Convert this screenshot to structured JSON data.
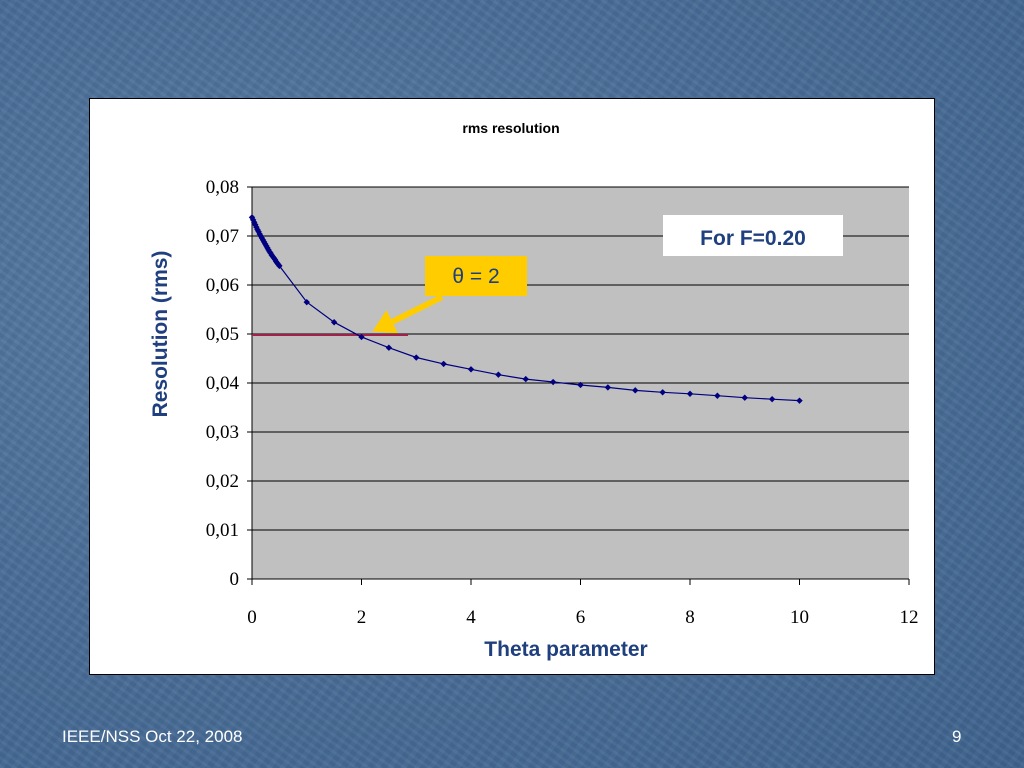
{
  "slide": {
    "footer_left": "IEEE/NSS Oct 22, 2008",
    "page_number": "9"
  },
  "colors": {
    "plot_background": "#c0c0c0",
    "series_line": "#000080",
    "reference_line": "#a0224a",
    "arrow": "#ffcc00",
    "axis_title": "#1f3f7f"
  },
  "chart_data": {
    "type": "line",
    "title": "rms resolution",
    "xlabel": "Theta parameter",
    "ylabel": "Resolution (rms)",
    "xlim": [
      0,
      12
    ],
    "ylim": [
      0,
      0.08
    ],
    "x_ticks": [
      "0",
      "2",
      "4",
      "6",
      "8",
      "10",
      "12"
    ],
    "y_ticks": [
      "0",
      "0,01",
      "0,02",
      "0,03",
      "0,04",
      "0,05",
      "0,06",
      "0,07",
      "0,08"
    ],
    "grid": "horizontal",
    "series": [
      {
        "marker": "diamond",
        "x": [
          0,
          0.02,
          0.04,
          0.06,
          0.08,
          0.1,
          0.12,
          0.14,
          0.16,
          0.18,
          0.2,
          0.22,
          0.24,
          0.26,
          0.28,
          0.3,
          0.32,
          0.34,
          0.36,
          0.38,
          0.4,
          0.42,
          0.44,
          0.46,
          0.48,
          0.5,
          1.0,
          1.5,
          2.0,
          2.5,
          3.0,
          3.5,
          4.0,
          4.5,
          5.0,
          5.5,
          6.0,
          6.5,
          7.0,
          7.5,
          8.0,
          8.5,
          9.0,
          9.5,
          10.0
        ],
        "y": [
          0.0738,
          0.0733,
          0.0728,
          0.0723,
          0.0718,
          0.0713,
          0.0709,
          0.0704,
          0.07,
          0.0696,
          0.0692,
          0.0688,
          0.0684,
          0.068,
          0.0676,
          0.0672,
          0.0668,
          0.0665,
          0.0661,
          0.0658,
          0.0655,
          0.0652,
          0.0648,
          0.0645,
          0.0642,
          0.0639,
          0.0565,
          0.0524,
          0.0494,
          0.0472,
          0.0452,
          0.0439,
          0.0428,
          0.0417,
          0.0408,
          0.0402,
          0.0396,
          0.0391,
          0.0385,
          0.0381,
          0.0378,
          0.0374,
          0.037,
          0.0367,
          0.0364
        ]
      }
    ],
    "reference_line": {
      "y": 0.0498,
      "x_from": 0,
      "x_to": 2.85
    },
    "annotations": [
      {
        "text": "For F=0.20"
      },
      {
        "text": "θ = 2",
        "points_to": [
          2.2,
          0.0505
        ]
      }
    ]
  }
}
